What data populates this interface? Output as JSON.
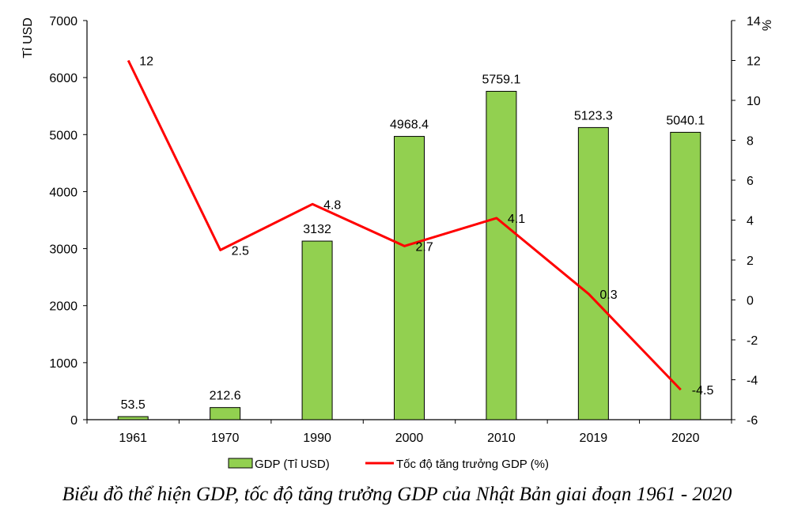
{
  "chart_data": {
    "type": "bar+line",
    "categories": [
      "1961",
      "1970",
      "1990",
      "2000",
      "2010",
      "2019",
      "2020"
    ],
    "series": [
      {
        "name": "GDP (Tỉ USD)",
        "type": "bar",
        "axis": "left",
        "color": "#92d050",
        "values": [
          53.5,
          212.6,
          3132,
          4968.4,
          5759.1,
          5123.3,
          5040.1
        ],
        "labels": [
          "53.5",
          "212.6",
          "3132",
          "4968.4",
          "5759.1",
          "5123.3",
          "5040.1"
        ]
      },
      {
        "name": "Tốc độ tăng trưởng GDP (%)",
        "type": "line",
        "axis": "right",
        "color": "#ff0000",
        "values": [
          12,
          2.5,
          4.8,
          2.7,
          4.1,
          0.3,
          -4.5
        ],
        "labels": [
          "12",
          "2.5",
          "4.8",
          "2.7",
          "4.1",
          "0.3",
          "-4.5"
        ]
      }
    ],
    "ylabel_left": "Tỉ USD",
    "ylabel_right": "%",
    "ylim_left": [
      0,
      7000
    ],
    "ylim_right": [
      -6,
      14
    ],
    "yticks_left": [
      0,
      1000,
      2000,
      3000,
      4000,
      5000,
      6000,
      7000
    ],
    "yticks_right": [
      -6,
      -4,
      -2,
      0,
      2,
      4,
      6,
      8,
      10,
      12,
      14
    ],
    "grid": false,
    "legend_position": "bottom"
  },
  "caption": "Biểu đồ thể hiện GDP, tốc độ tăng trưởng GDP của Nhật Bản giai đoạn 1961 - 2020",
  "colors": {
    "bar_fill": "#92d050",
    "bar_stroke": "#000000",
    "line": "#ff0000",
    "axis": "#000000"
  }
}
